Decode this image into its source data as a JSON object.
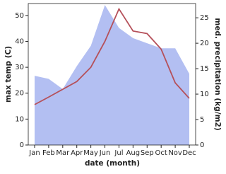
{
  "chart_data": {
    "type": "dual-axis-line-area",
    "x_label": "date (month)",
    "y_label": "max temp (C)",
    "y2_label": "med. precipitation (kg/m2)",
    "categories": [
      "Jan",
      "Feb",
      "Mar",
      "Apr",
      "May",
      "Jun",
      "Jul",
      "Aug",
      "Sep",
      "Oct",
      "Nov",
      "Dec"
    ],
    "ylim": [
      0,
      54.6
    ],
    "yticks": [
      0,
      10,
      20,
      30,
      40,
      50
    ],
    "y2lim": [
      0,
      27.8
    ],
    "y2ticks": [
      0,
      5,
      10,
      15,
      20,
      25
    ],
    "series": [
      {
        "name": "precipitation",
        "axis": "y2",
        "kind": "area",
        "color": "#b3bff2",
        "values": [
          13.6,
          13,
          11,
          15.5,
          19.5,
          27.5,
          23,
          21,
          20,
          19,
          19,
          14
        ]
      },
      {
        "name": "max temp",
        "kind": "line",
        "color": "#b5505a",
        "values": [
          15.6,
          18.5,
          21.5,
          24.5,
          30,
          40,
          52.5,
          44,
          43,
          37,
          24,
          18
        ]
      }
    ]
  }
}
